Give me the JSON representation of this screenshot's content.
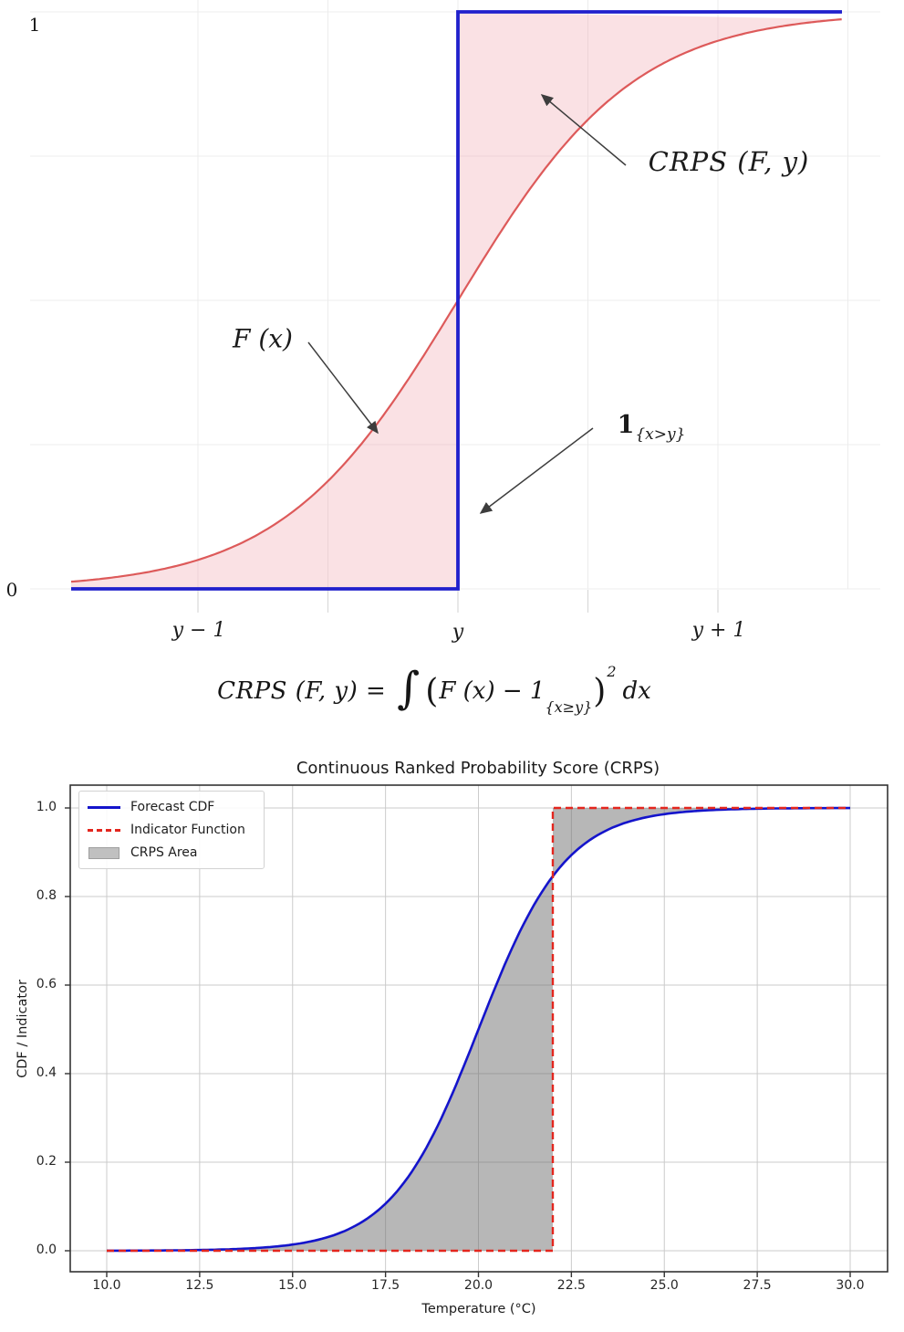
{
  "chart_data": [
    {
      "id": "crps-illustration",
      "type": "line",
      "title": "",
      "x_axis": {
        "tick_labels": [
          "y − 1",
          "y",
          "y + 1"
        ],
        "tick_values_offset_from_y": [
          -1,
          0,
          1
        ]
      },
      "y_axis": {
        "tick_labels": [
          "1",
          "0"
        ],
        "tick_values": [
          1,
          0
        ],
        "ylim": [
          0,
          1
        ]
      },
      "series": [
        {
          "name": "F (x)",
          "model": "logistic_cdf",
          "center_offset": 0,
          "scale": 0.34,
          "style": "solid",
          "color": "#dd5a5a"
        },
        {
          "name": "1{x>y}",
          "model": "step",
          "step_at_offset": 0,
          "low": 0,
          "high": 1,
          "style": "solid",
          "color": "#2020cc"
        }
      ],
      "shaded_area": {
        "label": "CRPS (F, y)",
        "between": [
          "F (x)",
          "1{x>y}"
        ],
        "color": "#f09aa5",
        "opacity": 0.3
      },
      "grid": {
        "on": true,
        "color": "#ececec"
      },
      "annotations": [
        {
          "text": "CRPS (F, y)"
        },
        {
          "text": "F (x)"
        },
        {
          "text_main": "1",
          "text_sub": "{x>y}"
        }
      ],
      "formula": {
        "lhs": "CRPS (F, y) =",
        "integral": "∫",
        "open_paren": "(",
        "body": "F (x) − 1",
        "subscript": "{x≥y}",
        "close_paren": ")",
        "exponent": "2",
        "differential": "dx"
      },
      "arrow_color": "#3d3d3d"
    },
    {
      "id": "crps-temperature",
      "type": "line",
      "title": "Continuous Ranked Probability Score (CRPS)",
      "xlabel": "Temperature (°C)",
      "ylabel": "CDF / Indicator",
      "xlim": [
        9,
        31
      ],
      "ylim": [
        -0.05,
        1.05
      ],
      "xticks": [
        "10.0",
        "12.5",
        "15.0",
        "17.5",
        "20.0",
        "22.5",
        "25.0",
        "27.5",
        "30.0"
      ],
      "yticks": [
        "0.0",
        "0.2",
        "0.4",
        "0.6",
        "0.8",
        "1.0"
      ],
      "grid": {
        "on": true,
        "color": "#cbcbcb"
      },
      "legend": [
        {
          "label": "Forecast CDF",
          "style": "solid",
          "color": "#1414cb"
        },
        {
          "label": "Indicator Function",
          "style": "dashed",
          "color": "#e3261e"
        },
        {
          "label": "CRPS Area",
          "style": "patch",
          "color": "#c0c0c0"
        }
      ],
      "series": [
        {
          "name": "Forecast CDF",
          "model": "normal_cdf",
          "mean": 20,
          "std": 2,
          "x_range": [
            10,
            30
          ],
          "style": "solid",
          "color": "#1414cb"
        },
        {
          "name": "Indicator Function",
          "model": "step",
          "threshold": 22,
          "low": 0,
          "high": 1,
          "x_range": [
            10,
            30
          ],
          "style": "dashed",
          "color": "#e3261e"
        }
      ],
      "shaded_area": {
        "name": "CRPS Area",
        "between": [
          "Forecast CDF",
          "Indicator Function"
        ],
        "color": "#707070",
        "opacity": 0.5
      },
      "observation_crossing_cdf": 0.84
    }
  ]
}
